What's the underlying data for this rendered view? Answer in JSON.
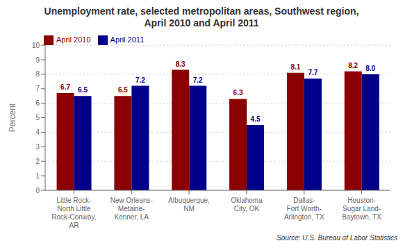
{
  "chart_data": {
    "type": "bar",
    "title": "Unemployment rate, selected metropolitan areas, Southwest region,\nApril 2010 and April 2011",
    "categories": [
      "Little Rock-\nNorth Little\nRock-Conway,\nAR",
      "New Orleans-\nMetairie-\nKenner, LA",
      "Albuquerque,\nNM",
      "Oklahoma\nCity, OK",
      "Dallas-\nFort Worth-\nArlington, TX",
      "Houston-\nSugar Land-\nBaytown, TX"
    ],
    "series": [
      {
        "name": "April 2010",
        "color": "#8B0000",
        "values": [
          6.7,
          6.5,
          8.3,
          6.3,
          8.1,
          8.2
        ]
      },
      {
        "name": "April 2011",
        "color": "#00008B",
        "values": [
          6.5,
          7.2,
          7.2,
          4.5,
          7.7,
          8.0
        ],
        "value_labels": [
          "6.5",
          "7.2",
          "7.2",
          "4.5",
          "7.7",
          "8.0"
        ]
      }
    ],
    "ylabel": "Percent",
    "ylim": [
      0,
      10
    ],
    "yticks": [
      0,
      1,
      2,
      3,
      4,
      5,
      6,
      7,
      8,
      9,
      10
    ],
    "grid": true,
    "legend": "upper left",
    "data_labels": true,
    "annotations": [
      "Source: U.S. Bureau of Labor Statistics"
    ]
  }
}
